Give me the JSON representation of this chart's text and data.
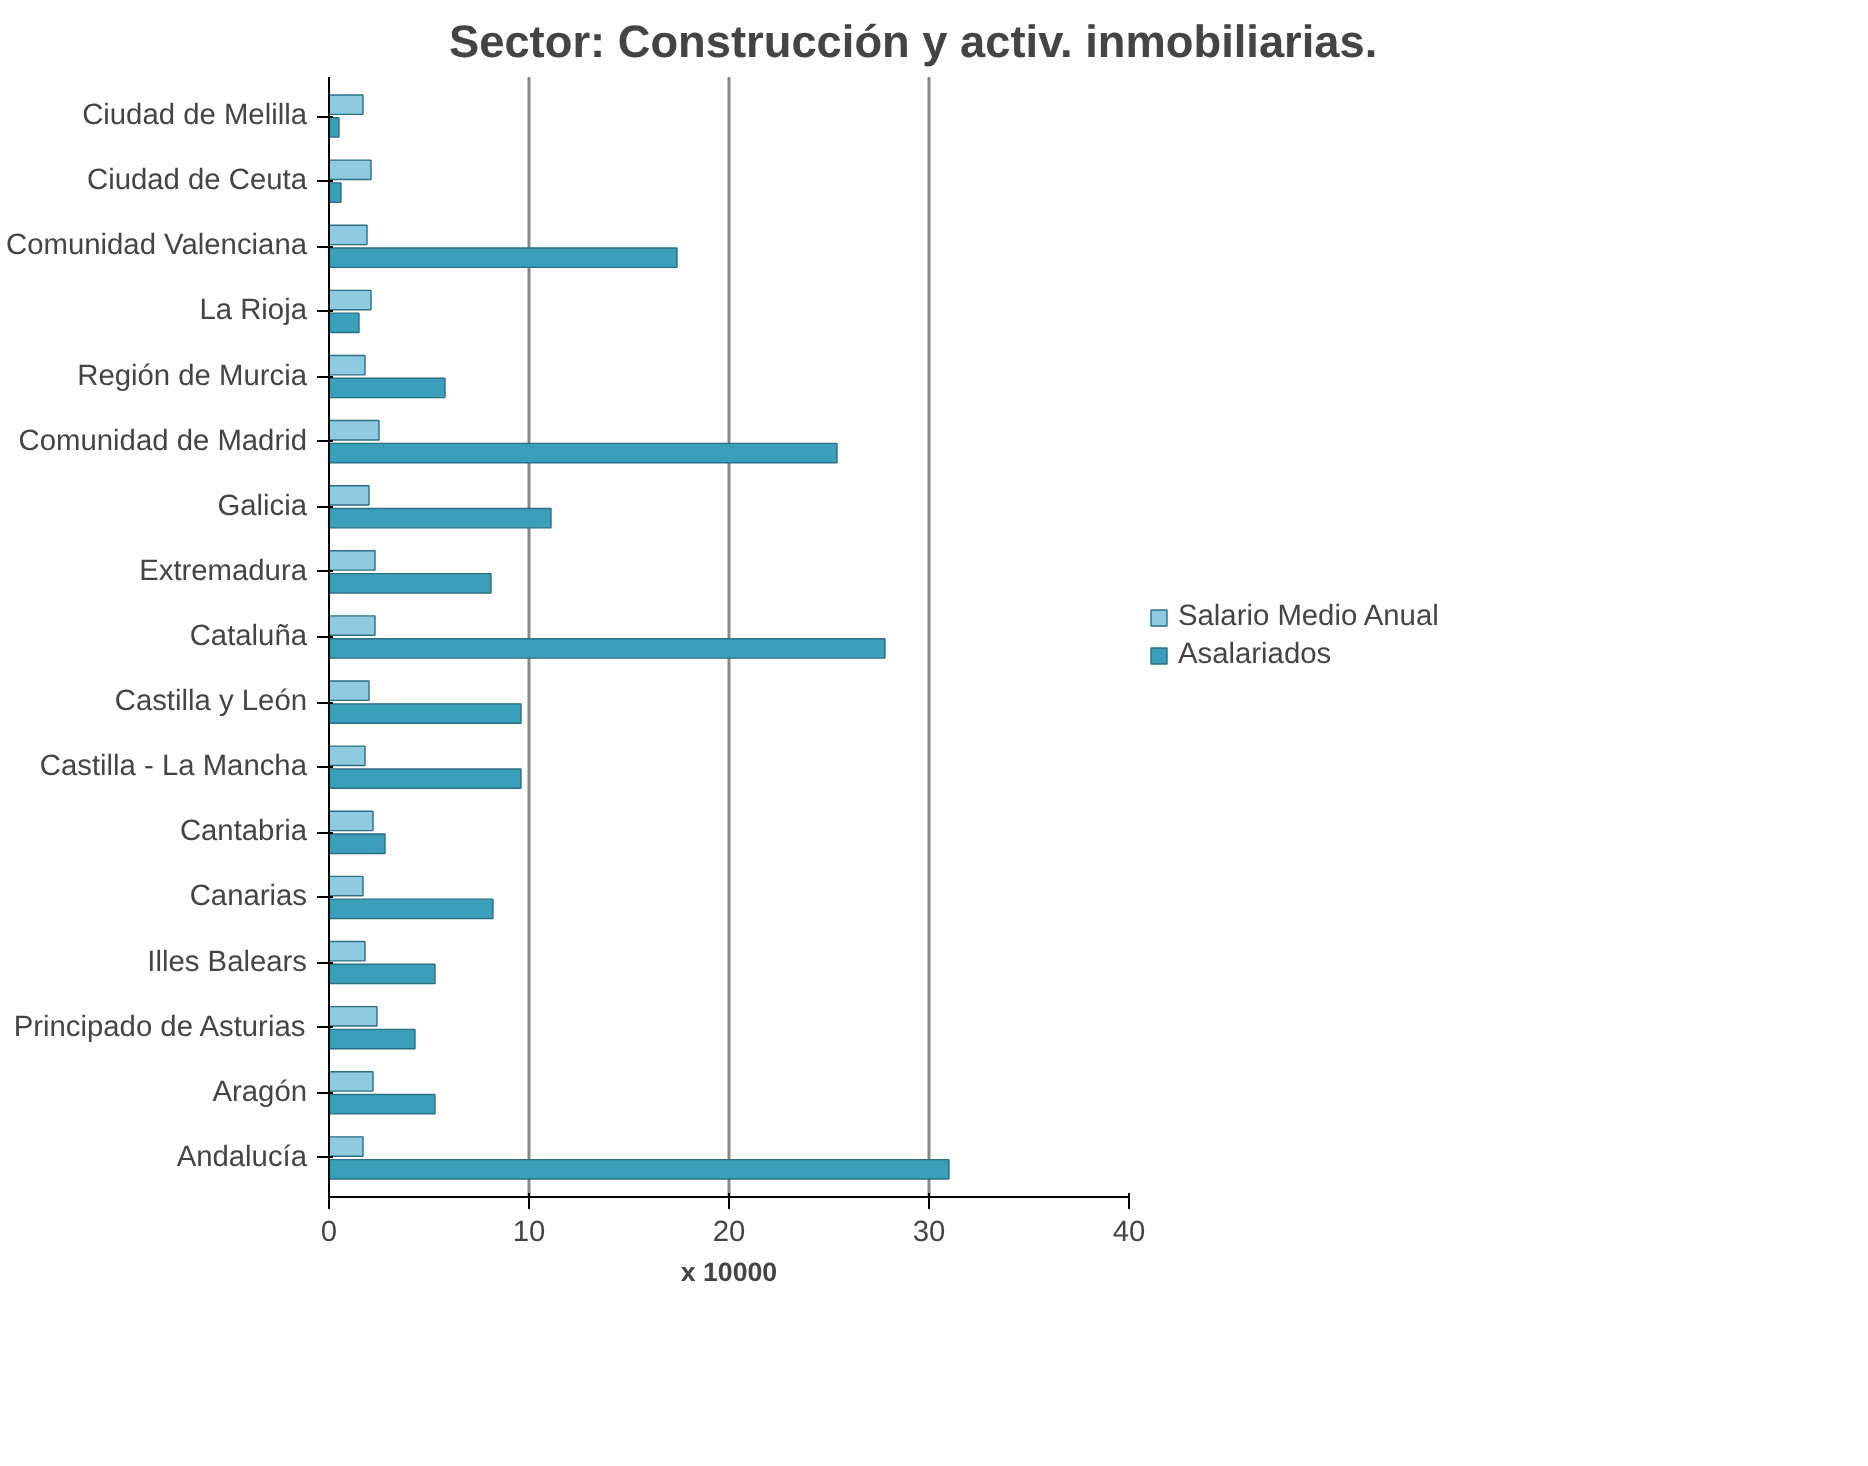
{
  "chart_data": {
    "type": "bar",
    "orientation": "horizontal",
    "title": "Sector: Construcción y activ. inmobiliarias.",
    "xlabel": "x 10000",
    "categories": [
      "Ciudad de Melilla",
      "Ciudad de Ceuta",
      "Comunidad Valenciana",
      "La Rioja",
      "Región de Murcia",
      "Comunidad de Madrid",
      "Galicia",
      "Extremadura",
      "Cataluña",
      "Castilla y León",
      "Castilla - La Mancha",
      "Cantabria",
      "Canarias",
      "Illes Balears",
      "Principado de Asturias",
      "Aragón",
      "Andalucía"
    ],
    "series": [
      {
        "name": "Salario Medio Anual",
        "color": "#8fcbe0",
        "values": [
          1.7,
          2.1,
          1.9,
          2.1,
          1.8,
          2.5,
          2.0,
          2.3,
          2.3,
          2.0,
          1.8,
          2.2,
          1.7,
          1.8,
          2.4,
          2.2,
          1.7
        ]
      },
      {
        "name": "Asalariados",
        "color": "#3a9fbb",
        "values": [
          0.5,
          0.6,
          17.4,
          1.5,
          5.8,
          25.4,
          11.1,
          8.1,
          27.8,
          9.6,
          9.6,
          2.8,
          8.2,
          5.3,
          4.3,
          5.3,
          31.0
        ]
      }
    ],
    "xlim": [
      0,
      40
    ],
    "xticks": [
      0,
      10,
      20,
      30,
      40
    ],
    "grid": "x",
    "legend": "right"
  }
}
